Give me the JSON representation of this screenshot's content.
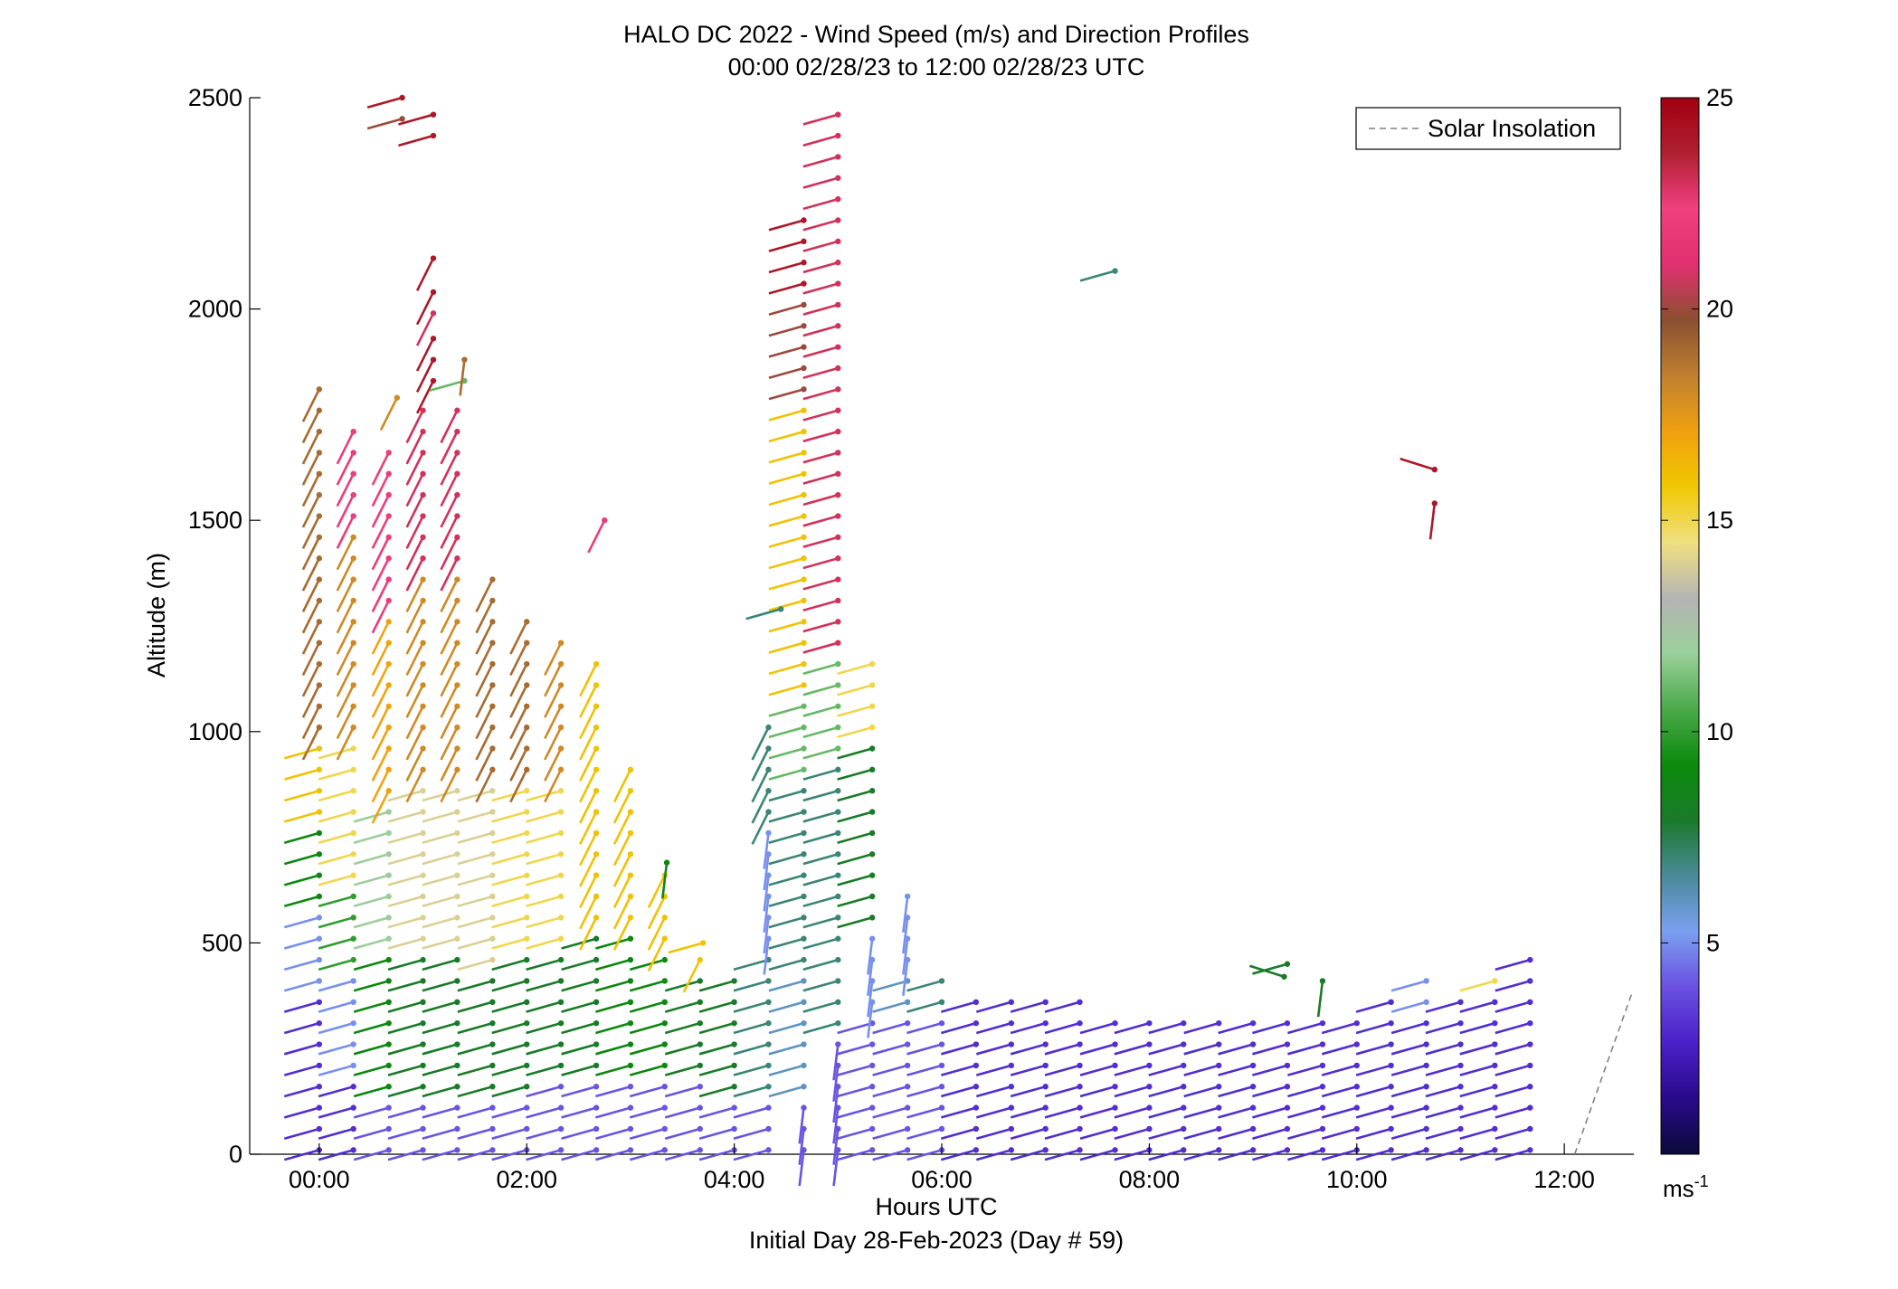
{
  "chart_data": {
    "type": "scatter",
    "subtype": "wind barb profiles",
    "title": "HALO DC 2022 - Wind Speed (m/s) and Direction Profiles",
    "subtitle": "00:00 02/28/23 to 12:00 02/28/23  UTC",
    "xlabel": "Hours UTC",
    "xlabel2": "Initial Day 28-Feb-2023 (Day # 59)",
    "ylabel": "Altitude (m)",
    "xlim_hours": [
      -0.67,
      12.67
    ],
    "ylim": [
      0,
      2500
    ],
    "x_ticks": [
      {
        "hour": 0,
        "label": "00:00"
      },
      {
        "hour": 2,
        "label": "02:00"
      },
      {
        "hour": 4,
        "label": "04:00"
      },
      {
        "hour": 6,
        "label": "06:00"
      },
      {
        "hour": 8,
        "label": "08:00"
      },
      {
        "hour": 10,
        "label": "10:00"
      },
      {
        "hour": 12,
        "label": "12:00"
      }
    ],
    "y_ticks": [
      0,
      500,
      1000,
      1500,
      2000,
      2500
    ],
    "legend": {
      "entries": [
        "Solar Insolation"
      ],
      "placement": "top-right",
      "style": "dashed gray line"
    },
    "solar_insolation": {
      "color": "#808080",
      "points": [
        [
          12.1,
          0
        ],
        [
          12.65,
          380
        ]
      ]
    },
    "colorbar": {
      "min": 0,
      "max": 25,
      "ticks": [
        5,
        10,
        15,
        20,
        25
      ],
      "unit_label": "ms",
      "unit_exponent": "-1",
      "colors": [
        "#0a0a3a",
        "#2a0a8a",
        "#4a20c8",
        "#6a50e0",
        "#7aa0f0",
        "#4a8a9a",
        "#1a7a2a",
        "#0a8a0a",
        "#4aaa4a",
        "#9ad09a",
        "#b4b4b4",
        "#f0e080",
        "#f0c800",
        "#f0a010",
        "#c08030",
        "#8a5030",
        "#e03070",
        "#f04080",
        "#b02030",
        "#a00010"
      ]
    },
    "profile_columns_hours": [
      0,
      0.33,
      0.67,
      1.0,
      1.33,
      1.67,
      2.0,
      2.33,
      2.67,
      3.0,
      3.33,
      3.67,
      4.0,
      4.33,
      4.67,
      5.0,
      5.33,
      5.67,
      6.0,
      6.33,
      6.67,
      7.0,
      7.33,
      7.67,
      8.0,
      8.33,
      8.67,
      9.0,
      9.33,
      9.67,
      10.0,
      10.33,
      10.67,
      11.0,
      11.33,
      11.67
    ],
    "profiles": [
      {
        "hour": 0.0,
        "top": 1840,
        "segments": [
          [
            0,
            380,
            3,
            "W"
          ],
          [
            380,
            560,
            5,
            "W"
          ],
          [
            560,
            780,
            9,
            "W"
          ],
          [
            780,
            1000,
            16,
            "W"
          ],
          [
            1000,
            1840,
            19,
            "SW"
          ]
        ]
      },
      {
        "hour": 0.33,
        "top": 1740,
        "segments": [
          [
            0,
            200,
            3,
            "W"
          ],
          [
            200,
            420,
            5,
            "W"
          ],
          [
            420,
            650,
            10,
            "W"
          ],
          [
            650,
            1000,
            15,
            "W"
          ],
          [
            1000,
            1480,
            18,
            "SW"
          ],
          [
            1480,
            1740,
            22,
            "SW"
          ]
        ]
      },
      {
        "hour": 0.67,
        "top": 1700,
        "segments": [
          [
            0,
            150,
            4,
            "W"
          ],
          [
            150,
            500,
            9,
            "W"
          ],
          [
            500,
            850,
            12,
            "W"
          ],
          [
            850,
            1300,
            17,
            "SW"
          ],
          [
            1300,
            1700,
            22,
            "SW"
          ]
        ]
      },
      {
        "hour": 1.0,
        "top": 1800,
        "segments": [
          [
            0,
            150,
            4,
            "W"
          ],
          [
            150,
            500,
            8,
            "W"
          ],
          [
            500,
            900,
            14,
            "W"
          ],
          [
            900,
            1400,
            18,
            "SW"
          ],
          [
            1400,
            1800,
            23,
            "SW"
          ]
        ]
      },
      {
        "hour": 1.33,
        "top": 1760,
        "segments": [
          [
            0,
            150,
            4,
            "W"
          ],
          [
            150,
            500,
            8,
            "W"
          ],
          [
            500,
            900,
            14,
            "W"
          ],
          [
            900,
            1400,
            18,
            "SW"
          ],
          [
            1400,
            1760,
            23,
            "SW"
          ]
        ]
      },
      {
        "hour": 1.67,
        "top": 1400,
        "segments": [
          [
            0,
            150,
            4,
            "W"
          ],
          [
            150,
            450,
            8,
            "W"
          ],
          [
            450,
            900,
            14,
            "W"
          ],
          [
            900,
            1400,
            19,
            "SW"
          ]
        ]
      },
      {
        "hour": 2.0,
        "top": 1290,
        "segments": [
          [
            0,
            150,
            4,
            "W"
          ],
          [
            150,
            480,
            8,
            "W"
          ],
          [
            480,
            900,
            15,
            "W"
          ],
          [
            900,
            1290,
            19,
            "SW"
          ]
        ]
      },
      {
        "hour": 2.33,
        "top": 1230,
        "segments": [
          [
            0,
            200,
            4,
            "W"
          ],
          [
            200,
            500,
            8,
            "W"
          ],
          [
            500,
            900,
            15,
            "W"
          ],
          [
            900,
            1230,
            18,
            "SW"
          ]
        ]
      },
      {
        "hour": 2.67,
        "top": 1200,
        "segments": [
          [
            0,
            200,
            4,
            "W"
          ],
          [
            200,
            540,
            8,
            "W"
          ],
          [
            540,
            1200,
            16,
            "SW"
          ]
        ]
      },
      {
        "hour": 3.0,
        "top": 950,
        "segments": [
          [
            0,
            200,
            4,
            "W"
          ],
          [
            200,
            520,
            9,
            "W"
          ],
          [
            520,
            950,
            16,
            "SW"
          ]
        ]
      },
      {
        "hour": 3.33,
        "top": 700,
        "segments": [
          [
            0,
            200,
            4,
            "W"
          ],
          [
            200,
            480,
            9,
            "W"
          ],
          [
            480,
            700,
            16,
            "SW"
          ]
        ]
      },
      {
        "hour": 3.67,
        "top": 500,
        "segments": [
          [
            0,
            200,
            4,
            "W"
          ],
          [
            200,
            450,
            8,
            "W"
          ],
          [
            450,
            500,
            16,
            "SW"
          ]
        ]
      },
      {
        "hour": 4.0,
        "top": 450,
        "segments": [
          [
            0,
            120,
            4,
            "W"
          ],
          [
            120,
            450,
            8,
            "W"
          ]
        ]
      },
      {
        "hour": 4.33,
        "top": 1040,
        "segments": [
          [
            0,
            120,
            4,
            "W"
          ],
          [
            120,
            500,
            7,
            "W"
          ],
          [
            500,
            800,
            5,
            "S"
          ],
          [
            800,
            1040,
            7,
            "SW"
          ]
        ]
      },
      {
        "hour": 4.67,
        "top": 2220,
        "segments": [
          [
            0,
            150,
            4,
            "S"
          ],
          [
            150,
            450,
            6,
            "W"
          ],
          [
            450,
            900,
            7,
            "W"
          ],
          [
            900,
            1100,
            11,
            "W"
          ],
          [
            1100,
            1800,
            16,
            "W"
          ],
          [
            1800,
            2050,
            20,
            "W"
          ],
          [
            2050,
            2220,
            24,
            "W"
          ]
        ]
      },
      {
        "hour": 5.0,
        "top": 2460,
        "segments": [
          [
            0,
            300,
            4,
            "S"
          ],
          [
            300,
            500,
            7,
            "W"
          ],
          [
            500,
            950,
            7,
            "W"
          ],
          [
            950,
            1200,
            11,
            "W"
          ],
          [
            2380,
            2460,
            23,
            "W"
          ]
        ]
      },
      {
        "hour": 5.33,
        "top": 1200,
        "segments": [
          [
            0,
            350,
            4,
            "W"
          ],
          [
            350,
            550,
            5,
            "S"
          ],
          [
            550,
            1000,
            8,
            "W"
          ],
          [
            1000,
            1200,
            15,
            "W"
          ]
        ]
      },
      {
        "hour": 5.67,
        "top": 620,
        "segments": [
          [
            0,
            350,
            4,
            "W"
          ],
          [
            350,
            450,
            6,
            "W"
          ],
          [
            450,
            620,
            5,
            "S"
          ]
        ]
      },
      {
        "hour": 6.0,
        "top": 420,
        "segments": [
          [
            0,
            350,
            4,
            "W"
          ],
          [
            350,
            420,
            7,
            "W"
          ]
        ]
      },
      {
        "hour": 6.33,
        "top": 380,
        "segments": [
          [
            0,
            380,
            3,
            "W"
          ]
        ]
      },
      {
        "hour": 6.67,
        "top": 380,
        "segments": [
          [
            0,
            380,
            3,
            "W"
          ]
        ]
      },
      {
        "hour": 7.0,
        "top": 380,
        "segments": [
          [
            0,
            380,
            3,
            "W"
          ]
        ]
      },
      {
        "hour": 7.33,
        "top": 380,
        "segments": [
          [
            0,
            380,
            3,
            "W"
          ]
        ]
      },
      {
        "hour": 7.67,
        "top": 350,
        "segments": [
          [
            0,
            350,
            3,
            "W"
          ]
        ]
      },
      {
        "hour": 8.0,
        "top": 350,
        "segments": [
          [
            0,
            350,
            3,
            "W"
          ]
        ]
      },
      {
        "hour": 8.33,
        "top": 350,
        "segments": [
          [
            0,
            350,
            3,
            "W"
          ]
        ]
      },
      {
        "hour": 8.67,
        "top": 350,
        "segments": [
          [
            0,
            350,
            3,
            "W"
          ]
        ]
      },
      {
        "hour": 9.0,
        "top": 350,
        "segments": [
          [
            0,
            350,
            3,
            "W"
          ]
        ]
      },
      {
        "hour": 9.33,
        "top": 350,
        "segments": [
          [
            0,
            350,
            3,
            "W"
          ]
        ]
      },
      {
        "hour": 9.67,
        "top": 350,
        "segments": [
          [
            0,
            350,
            3,
            "W"
          ]
        ]
      },
      {
        "hour": 10.0,
        "top": 350,
        "segments": [
          [
            0,
            350,
            3,
            "W"
          ]
        ]
      },
      {
        "hour": 10.33,
        "top": 380,
        "segments": [
          [
            0,
            380,
            3,
            "W"
          ]
        ]
      },
      {
        "hour": 10.67,
        "top": 420,
        "segments": [
          [
            0,
            350,
            3,
            "W"
          ],
          [
            350,
            420,
            5,
            "W"
          ]
        ]
      },
      {
        "hour": 11.0,
        "top": 400,
        "segments": [
          [
            0,
            400,
            3,
            "W"
          ]
        ]
      },
      {
        "hour": 11.33,
        "top": 420,
        "segments": [
          [
            0,
            380,
            3,
            "W"
          ],
          [
            380,
            420,
            15,
            "W"
          ]
        ]
      },
      {
        "hour": 11.67,
        "top": 480,
        "segments": [
          [
            0,
            480,
            3,
            "W"
          ]
        ]
      }
    ],
    "isolated_barbs": [
      {
        "hour": 0.8,
        "alt": 2500,
        "speed": 24,
        "dir": "W"
      },
      {
        "hour": 0.8,
        "alt": 2450,
        "speed": 20,
        "dir": "W"
      },
      {
        "hour": 1.1,
        "alt": 2460,
        "speed": 24,
        "dir": "W"
      },
      {
        "hour": 1.1,
        "alt": 2410,
        "speed": 24,
        "dir": "W"
      },
      {
        "hour": 1.1,
        "alt": 2120,
        "speed": 24,
        "dir": "SW"
      },
      {
        "hour": 1.1,
        "alt": 2040,
        "speed": 24,
        "dir": "SW"
      },
      {
        "hour": 1.1,
        "alt": 1990,
        "speed": 23,
        "dir": "SW"
      },
      {
        "hour": 1.1,
        "alt": 1930,
        "speed": 24,
        "dir": "SW"
      },
      {
        "hour": 1.1,
        "alt": 1880,
        "speed": 24,
        "dir": "SW"
      },
      {
        "hour": 1.1,
        "alt": 1830,
        "speed": 24,
        "dir": "SW"
      },
      {
        "hour": 1.4,
        "alt": 1830,
        "speed": 11,
        "dir": "W"
      },
      {
        "hour": 1.4,
        "alt": 1880,
        "speed": 19,
        "dir": "S"
      },
      {
        "hour": 0.75,
        "alt": 1790,
        "speed": 18,
        "dir": "SW"
      },
      {
        "hour": 2.75,
        "alt": 1500,
        "speed": 22,
        "dir": "SW"
      },
      {
        "hour": 4.45,
        "alt": 1290,
        "speed": 7,
        "dir": "W"
      },
      {
        "hour": 7.67,
        "alt": 2090,
        "speed": 7,
        "dir": "W"
      },
      {
        "hour": 10.75,
        "alt": 1620,
        "speed": 24,
        "dir": "NW"
      },
      {
        "hour": 10.75,
        "alt": 1540,
        "speed": 24,
        "dir": "S"
      },
      {
        "hour": 3.7,
        "alt": 500,
        "speed": 16,
        "dir": "W"
      },
      {
        "hour": 3.35,
        "alt": 690,
        "speed": 9,
        "dir": "S"
      },
      {
        "hour": 9.3,
        "alt": 420,
        "speed": 8,
        "dir": "NW"
      },
      {
        "hour": 9.67,
        "alt": 410,
        "speed": 8,
        "dir": "S"
      },
      {
        "hour": 9.33,
        "alt": 450,
        "speed": 8,
        "dir": "W"
      }
    ]
  }
}
